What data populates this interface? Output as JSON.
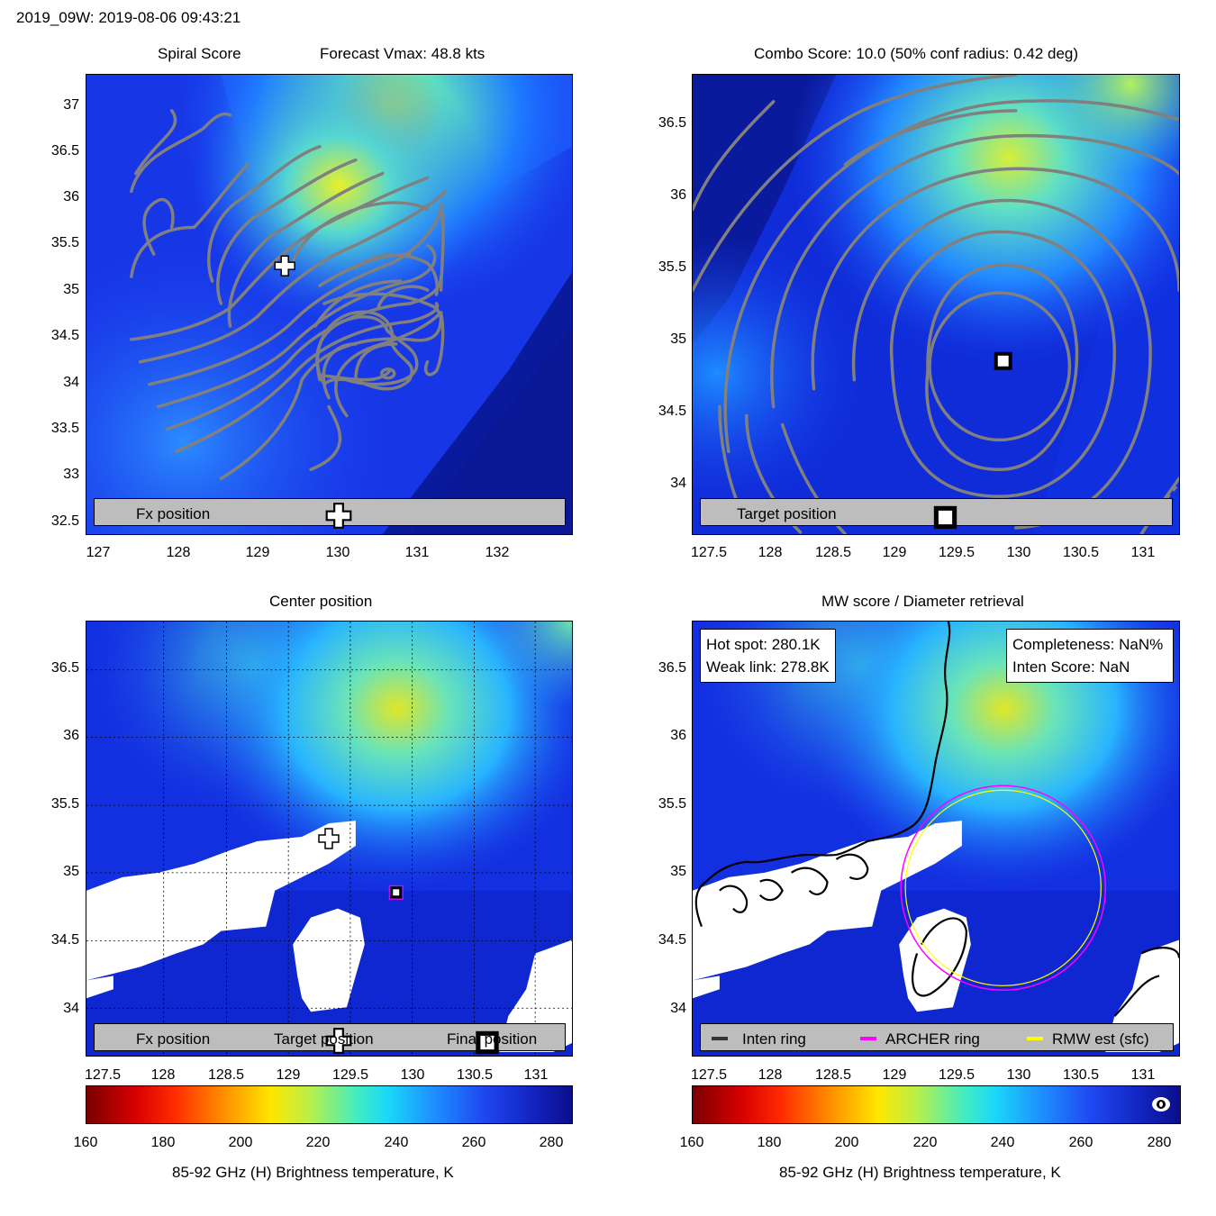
{
  "header": {
    "title": "2019_09W: 2019-08-06 09:43:21"
  },
  "panels": {
    "spiral": {
      "title_left": "Spiral Score",
      "title_right": "Forecast Vmax: 48.8 kts",
      "legend": {
        "fx_label": "Fx position"
      },
      "xticks": [
        "127",
        "128",
        "129",
        "130",
        "131",
        "132"
      ],
      "yticks": [
        "37",
        "36.5",
        "36",
        "35.5",
        "35",
        "34.5",
        "34",
        "33.5",
        "33",
        "32.5"
      ]
    },
    "combo": {
      "title": "Combo Score: 10.0  (50% conf radius: 0.42 deg)",
      "legend": {
        "target_label": "Target position"
      },
      "xticks": [
        "127.5",
        "128",
        "128.5",
        "129",
        "129.5",
        "130",
        "130.5",
        "131"
      ],
      "yticks": [
        "36.5",
        "36",
        "35.5",
        "35",
        "34.5",
        "34"
      ]
    },
    "center": {
      "title": "Center position",
      "legend": {
        "fx_label": "Fx position",
        "target_label": "Target position",
        "final_label": "Final position"
      },
      "xticks": [
        "127.5",
        "128",
        "128.5",
        "129",
        "129.5",
        "130",
        "130.5",
        "131"
      ],
      "yticks": [
        "36.5",
        "36",
        "35.5",
        "35",
        "34.5",
        "34"
      ]
    },
    "mw": {
      "title": "MW score / Diameter retrieval",
      "hot_spot": "Hot spot: 280.1K",
      "weak_link": "Weak link: 278.8K",
      "completeness": "Completeness: NaN%",
      "inten_score": "Inten Score: NaN",
      "legend": {
        "inten_ring": "Inten ring",
        "archer_ring": "ARCHER ring",
        "rmw_est": "RMW est (sfc)"
      },
      "xticks": [
        "127.5",
        "128",
        "128.5",
        "129",
        "129.5",
        "130",
        "130.5",
        "131"
      ],
      "yticks": [
        "36.5",
        "36",
        "35.5",
        "35",
        "34.5",
        "34"
      ]
    }
  },
  "colorbar": {
    "ticks": [
      "160",
      "180",
      "200",
      "220",
      "240",
      "260",
      "280"
    ],
    "label": "85-92 GHz (H) Brightness temperature, K",
    "range": [
      160,
      285
    ]
  },
  "colors": {
    "contour": "#808080",
    "archer_ring": "#ff00ff",
    "rmw_ring": "#ffff00",
    "inten_ring": "#000000",
    "legend_bg": "#bdbdbd",
    "final_marker": "#ff00ff"
  },
  "icons": {
    "fx": "plus-marker-icon",
    "target": "square-marker-icon",
    "final": "magenta-square-icon",
    "logo": "eye-logo-icon"
  },
  "chart_data": [
    {
      "type": "heatmap",
      "title": "Spiral Score",
      "subtitle": "Forecast Vmax: 48.8 kts",
      "xlim": [
        126.85,
        132.85
      ],
      "ylim": [
        32.4,
        37.4
      ],
      "fx_position": {
        "lon": 129.35,
        "lat": 35.27
      },
      "legend": [
        "Fx position"
      ]
    },
    {
      "type": "heatmap",
      "title": "Combo Score: 10.0  (50% conf radius: 0.42 deg)",
      "xlim": [
        127.5,
        131.3
      ],
      "ylim": [
        33.65,
        36.85
      ],
      "target_position": {
        "lon": 129.9,
        "lat": 34.86
      },
      "legend": [
        "Target position"
      ]
    },
    {
      "type": "heatmap",
      "title": "Center position",
      "xlim": [
        127.4,
        131.3
      ],
      "ylim": [
        33.65,
        36.85
      ],
      "fx_position": {
        "lon": 129.3,
        "lat": 35.25
      },
      "target_position": {
        "lon": 129.9,
        "lat": 34.86
      },
      "final_position": {
        "lon": 129.9,
        "lat": 34.86
      },
      "legend": [
        "Fx position",
        "Target position",
        "Final position"
      ]
    },
    {
      "type": "heatmap",
      "title": "MW score / Diameter retrieval",
      "xlim": [
        127.5,
        131.3
      ],
      "ylim": [
        33.65,
        36.85
      ],
      "annotations": [
        "Hot spot: 280.1K",
        "Weak link: 278.8K",
        "Completeness: NaN%",
        "Inten Score: NaN"
      ],
      "archer_ring": {
        "center_lon": 129.9,
        "center_lat": 34.86,
        "radius_deg": 0.75
      },
      "rmw_ring": {
        "center_lon": 129.9,
        "center_lat": 34.86,
        "radius_deg": 0.73
      },
      "legend": [
        "Inten ring",
        "ARCHER ring",
        "RMW est (sfc)"
      ]
    }
  ]
}
